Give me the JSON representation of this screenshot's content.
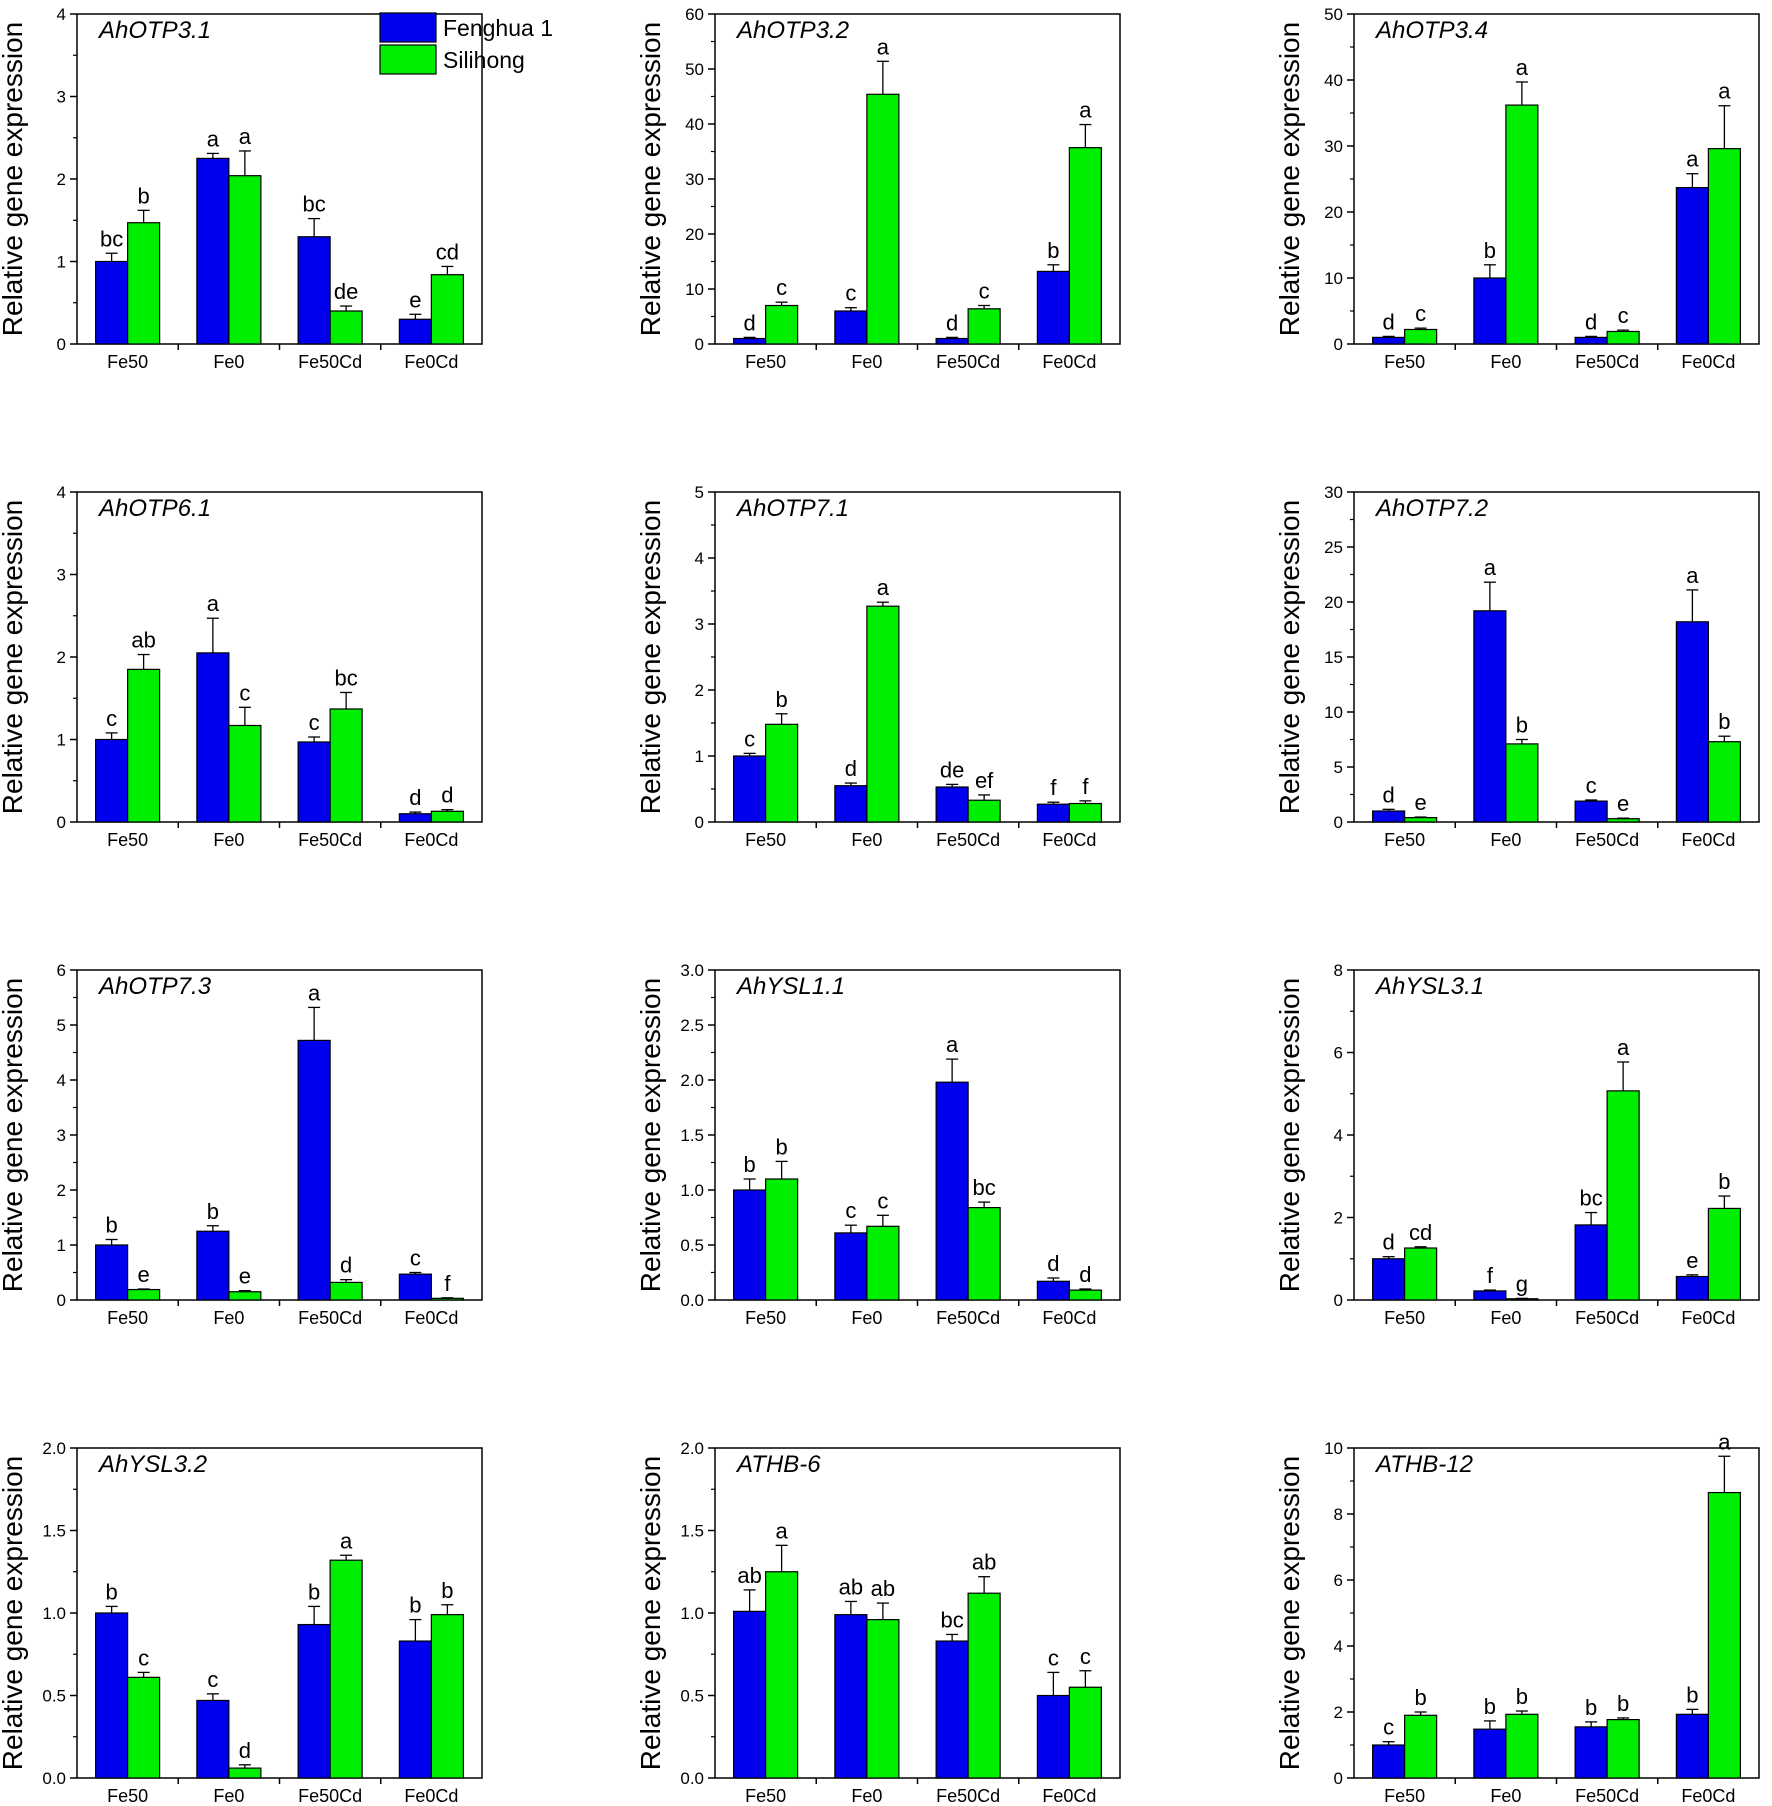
{
  "colors": {
    "Fenghua 1": "#0000ee",
    "Silihong": "#00ee00"
  },
  "legend": [
    "Fenghua 1",
    "Silihong"
  ],
  "chart_data": [
    {
      "type": "bar",
      "title": "AhOTP3.1",
      "ylabel": "Relative gene expression",
      "categories": [
        "Fe50",
        "Fe0",
        "Fe50Cd",
        "Fe0Cd"
      ],
      "ylim": [
        0,
        4
      ],
      "yticks": [
        0,
        1,
        2,
        3,
        4
      ],
      "ytick_labels": [
        "0",
        "1",
        "2",
        "3",
        "4"
      ],
      "series": [
        {
          "name": "Fenghua 1",
          "values": [
            1.0,
            2.25,
            1.3,
            0.3
          ],
          "errors": [
            0.1,
            0.06,
            0.22,
            0.06
          ],
          "letters": [
            "bc",
            "a",
            "bc",
            "e"
          ]
        },
        {
          "name": "Silihong",
          "values": [
            1.47,
            2.04,
            0.4,
            0.84
          ],
          "errors": [
            0.15,
            0.3,
            0.06,
            0.1
          ],
          "letters": [
            "b",
            "a",
            "de",
            "cd"
          ]
        }
      ]
    },
    {
      "type": "bar",
      "title": "AhOTP3.2",
      "ylabel": "Relative gene expression",
      "categories": [
        "Fe50",
        "Fe0",
        "Fe50Cd",
        "Fe0Cd"
      ],
      "ylim": [
        0,
        60
      ],
      "yticks": [
        0,
        10,
        20,
        30,
        40,
        50,
        60
      ],
      "ytick_labels": [
        "0",
        "10",
        "20",
        "30",
        "40",
        "50",
        "60"
      ],
      "series": [
        {
          "name": "Fenghua 1",
          "values": [
            1.0,
            6.0,
            1.0,
            13.2
          ],
          "errors": [
            0.2,
            0.6,
            0.2,
            1.2
          ],
          "letters": [
            "d",
            "c",
            "d",
            "b"
          ]
        },
        {
          "name": "Silihong",
          "values": [
            7.0,
            45.4,
            6.4,
            35.7
          ],
          "errors": [
            0.6,
            6.0,
            0.6,
            4.2
          ],
          "letters": [
            "c",
            "a",
            "c",
            "a"
          ]
        }
      ]
    },
    {
      "type": "bar",
      "title": "AhOTP3.4",
      "ylabel": "Relative gene expression",
      "categories": [
        "Fe50",
        "Fe0",
        "Fe50Cd",
        "Fe0Cd"
      ],
      "ylim": [
        0,
        50
      ],
      "yticks": [
        0,
        10,
        20,
        30,
        40,
        50
      ],
      "ytick_labels": [
        "0",
        "10",
        "20",
        "30",
        "40",
        "50"
      ],
      "series": [
        {
          "name": "Fenghua 1",
          "values": [
            1.0,
            10.0,
            1.0,
            23.7
          ],
          "errors": [
            0.15,
            2.0,
            0.15,
            2.1
          ],
          "letters": [
            "d",
            "b",
            "d",
            "a"
          ]
        },
        {
          "name": "Silihong",
          "values": [
            2.2,
            36.2,
            1.9,
            29.6
          ],
          "errors": [
            0.2,
            3.5,
            0.2,
            6.5
          ],
          "letters": [
            "c",
            "a",
            "c",
            "a"
          ]
        }
      ]
    },
    {
      "type": "bar",
      "title": "AhOTP6.1",
      "ylabel": "Relative gene expression",
      "categories": [
        "Fe50",
        "Fe0",
        "Fe50Cd",
        "Fe0Cd"
      ],
      "ylim": [
        0,
        4
      ],
      "yticks": [
        0,
        1,
        2,
        3,
        4
      ],
      "ytick_labels": [
        "0",
        "1",
        "2",
        "3",
        "4"
      ],
      "series": [
        {
          "name": "Fenghua 1",
          "values": [
            1.0,
            2.05,
            0.97,
            0.1
          ],
          "errors": [
            0.08,
            0.42,
            0.06,
            0.02
          ],
          "letters": [
            "c",
            "a",
            "c",
            "d"
          ]
        },
        {
          "name": "Silihong",
          "values": [
            1.85,
            1.17,
            1.37,
            0.13
          ],
          "errors": [
            0.18,
            0.22,
            0.2,
            0.02
          ],
          "letters": [
            "ab",
            "c",
            "bc",
            "d"
          ]
        }
      ]
    },
    {
      "type": "bar",
      "title": "AhOTP7.1",
      "ylabel": "Relative gene expression",
      "categories": [
        "Fe50",
        "Fe0",
        "Fe50Cd",
        "Fe0Cd"
      ],
      "ylim": [
        0,
        5
      ],
      "yticks": [
        0,
        1,
        2,
        3,
        4,
        5
      ],
      "ytick_labels": [
        "0",
        "1",
        "2",
        "3",
        "4",
        "5"
      ],
      "series": [
        {
          "name": "Fenghua 1",
          "values": [
            1.0,
            0.55,
            0.53,
            0.27
          ],
          "errors": [
            0.04,
            0.04,
            0.04,
            0.03
          ],
          "letters": [
            "c",
            "d",
            "de",
            "f"
          ]
        },
        {
          "name": "Silihong",
          "values": [
            1.48,
            3.27,
            0.33,
            0.28
          ],
          "errors": [
            0.16,
            0.06,
            0.08,
            0.04
          ],
          "letters": [
            "b",
            "a",
            "ef",
            "f"
          ]
        }
      ]
    },
    {
      "type": "bar",
      "title": "AhOTP7.2",
      "ylabel": "Relative gene expression",
      "categories": [
        "Fe50",
        "Fe0",
        "Fe50Cd",
        "Fe0Cd"
      ],
      "ylim": [
        0,
        30
      ],
      "yticks": [
        0,
        5,
        10,
        15,
        20,
        25,
        30
      ],
      "ytick_labels": [
        "0",
        "5",
        "10",
        "15",
        "20",
        "25",
        "30"
      ],
      "series": [
        {
          "name": "Fenghua 1",
          "values": [
            1.0,
            19.2,
            1.9,
            18.2
          ],
          "errors": [
            0.15,
            2.6,
            0.1,
            2.9
          ],
          "letters": [
            "d",
            "a",
            "c",
            "a"
          ]
        },
        {
          "name": "Silihong",
          "values": [
            0.4,
            7.1,
            0.3,
            7.3
          ],
          "errors": [
            0.05,
            0.4,
            0.05,
            0.5
          ],
          "letters": [
            "e",
            "b",
            "e",
            "b"
          ]
        }
      ]
    },
    {
      "type": "bar",
      "title": "AhOTP7.3",
      "ylabel": "Relative gene expression",
      "categories": [
        "Fe50",
        "Fe0",
        "Fe50Cd",
        "Fe0Cd"
      ],
      "ylim": [
        0,
        6
      ],
      "yticks": [
        0,
        1,
        2,
        3,
        4,
        5,
        6
      ],
      "ytick_labels": [
        "0",
        "1",
        "2",
        "3",
        "4",
        "5",
        "6"
      ],
      "series": [
        {
          "name": "Fenghua 1",
          "values": [
            1.0,
            1.25,
            4.72,
            0.47
          ],
          "errors": [
            0.1,
            0.1,
            0.6,
            0.03
          ],
          "letters": [
            "b",
            "b",
            "a",
            "c"
          ]
        },
        {
          "name": "Silihong",
          "values": [
            0.19,
            0.15,
            0.32,
            0.03
          ],
          "errors": [
            0.01,
            0.02,
            0.05,
            0.01
          ],
          "letters": [
            "e",
            "e",
            "d",
            "f"
          ]
        }
      ]
    },
    {
      "type": "bar",
      "title": "AhYSL1.1",
      "ylabel": "Relative gene expression",
      "categories": [
        "Fe50",
        "Fe0",
        "Fe50Cd",
        "Fe0Cd"
      ],
      "ylim": [
        0,
        3.0
      ],
      "yticks": [
        0,
        0.5,
        1.0,
        1.5,
        2.0,
        2.5,
        3.0
      ],
      "ytick_labels": [
        "0.0",
        "0.5",
        "1.0",
        "1.5",
        "2.0",
        "2.5",
        "3.0"
      ],
      "series": [
        {
          "name": "Fenghua 1",
          "values": [
            1.0,
            0.61,
            1.98,
            0.17
          ],
          "errors": [
            0.1,
            0.07,
            0.21,
            0.03
          ],
          "letters": [
            "b",
            "c",
            "a",
            "d"
          ]
        },
        {
          "name": "Silihong",
          "values": [
            1.1,
            0.67,
            0.84,
            0.09
          ],
          "errors": [
            0.16,
            0.1,
            0.05,
            0.01
          ],
          "letters": [
            "b",
            "c",
            "bc",
            "d"
          ]
        }
      ]
    },
    {
      "type": "bar",
      "title": "AhYSL3.1",
      "ylabel": "Relative gene expression",
      "categories": [
        "Fe50",
        "Fe0",
        "Fe50Cd",
        "Fe0Cd"
      ],
      "ylim": [
        0,
        8
      ],
      "yticks": [
        0,
        2,
        4,
        6,
        8
      ],
      "ytick_labels": [
        "0",
        "2",
        "4",
        "6",
        "8"
      ],
      "series": [
        {
          "name": "Fenghua 1",
          "values": [
            1.0,
            0.22,
            1.82,
            0.57
          ],
          "errors": [
            0.05,
            0.02,
            0.3,
            0.04
          ],
          "letters": [
            "d",
            "f",
            "bc",
            "e"
          ]
        },
        {
          "name": "Silihong",
          "values": [
            1.26,
            0.03,
            5.07,
            2.22
          ],
          "errors": [
            0.03,
            0.01,
            0.7,
            0.3
          ],
          "letters": [
            "cd",
            "g",
            "a",
            "b"
          ]
        }
      ]
    },
    {
      "type": "bar",
      "title": "AhYSL3.2",
      "ylabel": "Relative gene expression",
      "categories": [
        "Fe50",
        "Fe0",
        "Fe50Cd",
        "Fe0Cd"
      ],
      "ylim": [
        0,
        2.0
      ],
      "yticks": [
        0,
        0.5,
        1.0,
        1.5,
        2.0
      ],
      "ytick_labels": [
        "0.0",
        "0.5",
        "1.0",
        "1.5",
        "2.0"
      ],
      "series": [
        {
          "name": "Fenghua 1",
          "values": [
            1.0,
            0.47,
            0.93,
            0.83
          ],
          "errors": [
            0.04,
            0.04,
            0.11,
            0.13
          ],
          "letters": [
            "b",
            "c",
            "b",
            "b"
          ]
        },
        {
          "name": "Silihong",
          "values": [
            0.61,
            0.06,
            1.32,
            0.99
          ],
          "errors": [
            0.03,
            0.02,
            0.03,
            0.06
          ],
          "letters": [
            "c",
            "d",
            "a",
            "b"
          ]
        }
      ]
    },
    {
      "type": "bar",
      "title": "ATHB-6",
      "ylabel": "Relative gene expression",
      "categories": [
        "Fe50",
        "Fe0",
        "Fe50Cd",
        "Fe0Cd"
      ],
      "ylim": [
        0,
        2.0
      ],
      "yticks": [
        0,
        0.5,
        1.0,
        1.5,
        2.0
      ],
      "ytick_labels": [
        "0.0",
        "0.5",
        "1.0",
        "1.5",
        "2.0"
      ],
      "series": [
        {
          "name": "Fenghua 1",
          "values": [
            1.01,
            0.99,
            0.83,
            0.5
          ],
          "errors": [
            0.13,
            0.08,
            0.04,
            0.14
          ],
          "letters": [
            "ab",
            "ab",
            "bc",
            "c"
          ]
        },
        {
          "name": "Silihong",
          "values": [
            1.25,
            0.96,
            1.12,
            0.55
          ],
          "errors": [
            0.16,
            0.1,
            0.1,
            0.1
          ],
          "letters": [
            "a",
            "ab",
            "ab",
            "c"
          ]
        }
      ]
    },
    {
      "type": "bar",
      "title": "ATHB-12",
      "ylabel": "Relative gene expression",
      "categories": [
        "Fe50",
        "Fe0",
        "Fe50Cd",
        "Fe0Cd"
      ],
      "ylim": [
        0,
        10
      ],
      "yticks": [
        0,
        2,
        4,
        6,
        8,
        10
      ],
      "ytick_labels": [
        "0",
        "2",
        "4",
        "6",
        "8",
        "10"
      ],
      "series": [
        {
          "name": "Fenghua 1",
          "values": [
            1.0,
            1.48,
            1.55,
            1.93
          ],
          "errors": [
            0.1,
            0.25,
            0.15,
            0.15
          ],
          "letters": [
            "c",
            "b",
            "b",
            "b"
          ]
        },
        {
          "name": "Silihong",
          "values": [
            1.9,
            1.93,
            1.77,
            8.65
          ],
          "errors": [
            0.1,
            0.1,
            0.05,
            1.1
          ],
          "letters": [
            "b",
            "b",
            "b",
            "a"
          ]
        }
      ]
    }
  ]
}
